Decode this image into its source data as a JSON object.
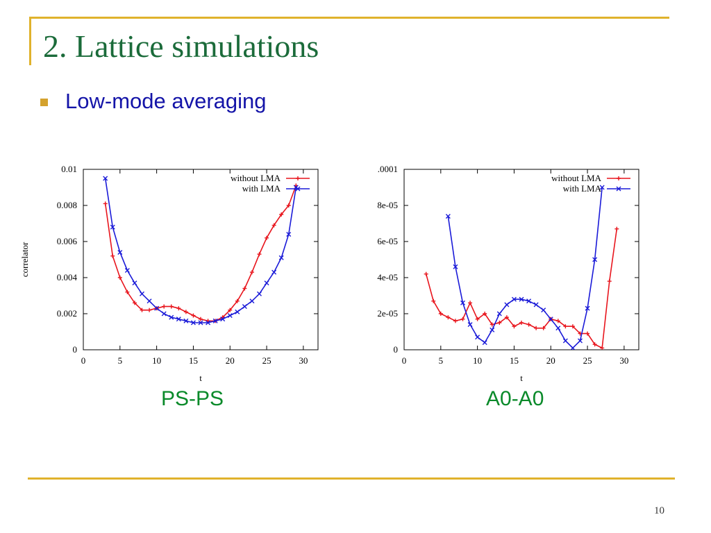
{
  "slide": {
    "title": "2. Lattice simulations",
    "bullet": "Low-mode averaging",
    "page_number": "10"
  },
  "colors": {
    "without": "#e8141c",
    "with": "#1a1ad8"
  },
  "chart_data": [
    {
      "type": "line",
      "caption": "PS-PS",
      "xlabel": "t",
      "ylabel": "correlator",
      "xlim": [
        0,
        32
      ],
      "ylim": [
        0,
        0.01
      ],
      "xticks": [
        "0",
        "5",
        "10",
        "15",
        "20",
        "25",
        "30"
      ],
      "yticks": [
        "0",
        "0.002",
        "0.004",
        "0.006",
        "0.008",
        "0.01"
      ],
      "legend_position": "top-right",
      "series": [
        {
          "name": "without LMA",
          "color_key": "without",
          "marker": "+",
          "x": [
            3,
            4,
            5,
            6,
            7,
            8,
            9,
            10,
            11,
            12,
            13,
            14,
            15,
            16,
            17,
            18,
            19,
            20,
            21,
            22,
            23,
            24,
            25,
            26,
            27,
            28,
            29
          ],
          "y": [
            0.0081,
            0.0052,
            0.004,
            0.0032,
            0.0026,
            0.0022,
            0.0022,
            0.0023,
            0.0024,
            0.0024,
            0.0023,
            0.0021,
            0.0019,
            0.0017,
            0.0016,
            0.0016,
            0.0018,
            0.0022,
            0.0027,
            0.0034,
            0.0043,
            0.0053,
            0.0062,
            0.0069,
            0.0075,
            0.008,
            0.0091
          ]
        },
        {
          "name": "with LMA",
          "color_key": "with",
          "marker": "x",
          "x": [
            3,
            4,
            5,
            6,
            7,
            8,
            9,
            10,
            11,
            12,
            13,
            14,
            15,
            16,
            17,
            18,
            19,
            20,
            21,
            22,
            23,
            24,
            25,
            26,
            27,
            28,
            29
          ],
          "y": [
            0.0095,
            0.0068,
            0.0054,
            0.0044,
            0.0037,
            0.0031,
            0.0027,
            0.0023,
            0.002,
            0.0018,
            0.0017,
            0.0016,
            0.0015,
            0.0015,
            0.0015,
            0.0016,
            0.0017,
            0.0019,
            0.0021,
            0.0024,
            0.0027,
            0.0031,
            0.0037,
            0.0043,
            0.0051,
            0.0064,
            0.009
          ]
        }
      ]
    },
    {
      "type": "line",
      "caption": "A0-A0",
      "xlabel": "t",
      "ylabel": "",
      "xlim": [
        0,
        32
      ],
      "ylim": [
        0,
        0.0001
      ],
      "xticks": [
        "0",
        "5",
        "10",
        "15",
        "20",
        "25",
        "30"
      ],
      "yticks": [
        "0",
        "2e-05",
        "4e-05",
        "6e-05",
        "8e-05",
        ".0001"
      ],
      "legend_position": "top-right",
      "series": [
        {
          "name": "without LMA",
          "color_key": "without",
          "marker": "+",
          "x": [
            3,
            4,
            5,
            6,
            7,
            8,
            9,
            10,
            11,
            12,
            13,
            14,
            15,
            16,
            17,
            18,
            19,
            20,
            21,
            22,
            23,
            24,
            25,
            26,
            27,
            28,
            29
          ],
          "y": [
            4.2e-05,
            2.7e-05,
            2e-05,
            1.8e-05,
            1.6e-05,
            1.7e-05,
            2.6e-05,
            1.7e-05,
            2e-05,
            1.4e-05,
            1.5e-05,
            1.8e-05,
            1.3e-05,
            1.5e-05,
            1.4e-05,
            1.2e-05,
            1.2e-05,
            1.7e-05,
            1.6e-05,
            1.3e-05,
            1.3e-05,
            9e-06,
            9e-06,
            3e-06,
            1e-06,
            3.8e-05,
            6.7e-05
          ]
        },
        {
          "name": "with LMA",
          "color_key": "with",
          "marker": "x",
          "x": [
            6,
            7,
            8,
            9,
            10,
            11,
            12,
            13,
            14,
            15,
            16,
            17,
            18,
            19,
            20,
            21,
            22,
            23,
            24,
            25,
            26,
            27
          ],
          "y": [
            7.4e-05,
            4.6e-05,
            2.6e-05,
            1.4e-05,
            7e-06,
            4e-06,
            1.1e-05,
            2e-05,
            2.5e-05,
            2.8e-05,
            2.8e-05,
            2.7e-05,
            2.5e-05,
            2.2e-05,
            1.7e-05,
            1.2e-05,
            5e-06,
            1e-06,
            5e-06,
            2.3e-05,
            5e-05,
            9e-05
          ]
        }
      ]
    }
  ]
}
